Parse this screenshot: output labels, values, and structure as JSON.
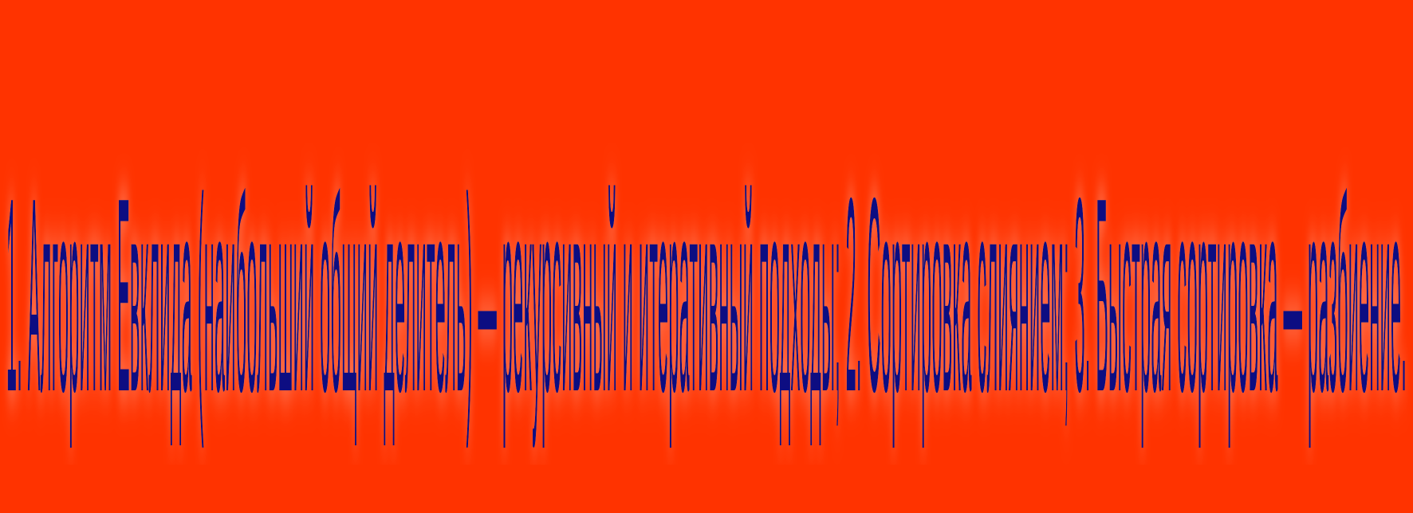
{
  "banner": {
    "background_color": "#ff3300",
    "text_color": "#0a0a82",
    "caption": "1. Алгоритм Евклида (наибольший общий делитель) — рекурсивный и итеративный подходы; 2. Сортировка слиянием; 3. Быстрая сортировка — разбиение."
  }
}
